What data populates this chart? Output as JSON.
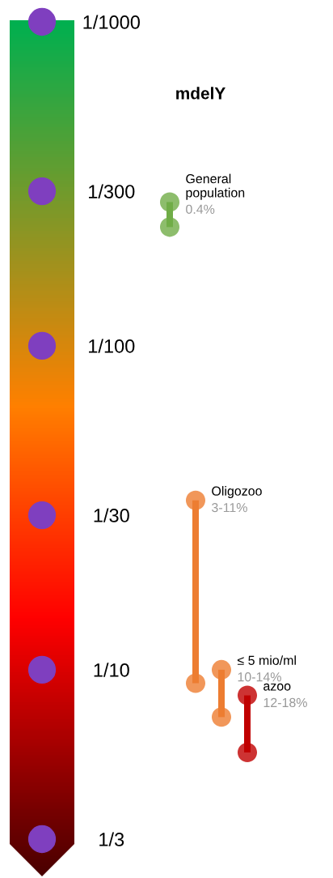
{
  "chart_data": {
    "type": "bar",
    "title": "mdelY",
    "categories": [
      null,
      null,
      null,
      null
    ],
    "base": [
      0.0036,
      0.03,
      0.1,
      0.12
    ],
    "values": [
      0.0007,
      0.08,
      0.04,
      0.06
    ],
    "colors": [
      "#70ad47",
      "#ed7d31",
      "#ed7d31",
      "#c00000"
    ],
    "annotations": [
      "General\npopulation",
      "0.4%",
      "Oligozoo",
      "3-11%",
      "≤ 5 mio/ml",
      "10-14%",
      "azoo",
      "12-18%"
    ],
    "marker": "circle",
    "log": "y",
    "ylim": [
      0.3333,
      0.001
    ],
    "yticks": [
      {
        "value": 0.001,
        "label": "1/1000"
      },
      {
        "value": 0.003333,
        "label": "1/300"
      },
      {
        "value": 0.01,
        "label": "1/100"
      },
      {
        "value": 0.03333,
        "label": "1/30"
      },
      {
        "value": 0.1,
        "label": "1/10"
      },
      {
        "value": 0.3333,
        "label": "1/3"
      }
    ],
    "tick_labels": "y",
    "grid": false,
    "legend": false
  }
}
